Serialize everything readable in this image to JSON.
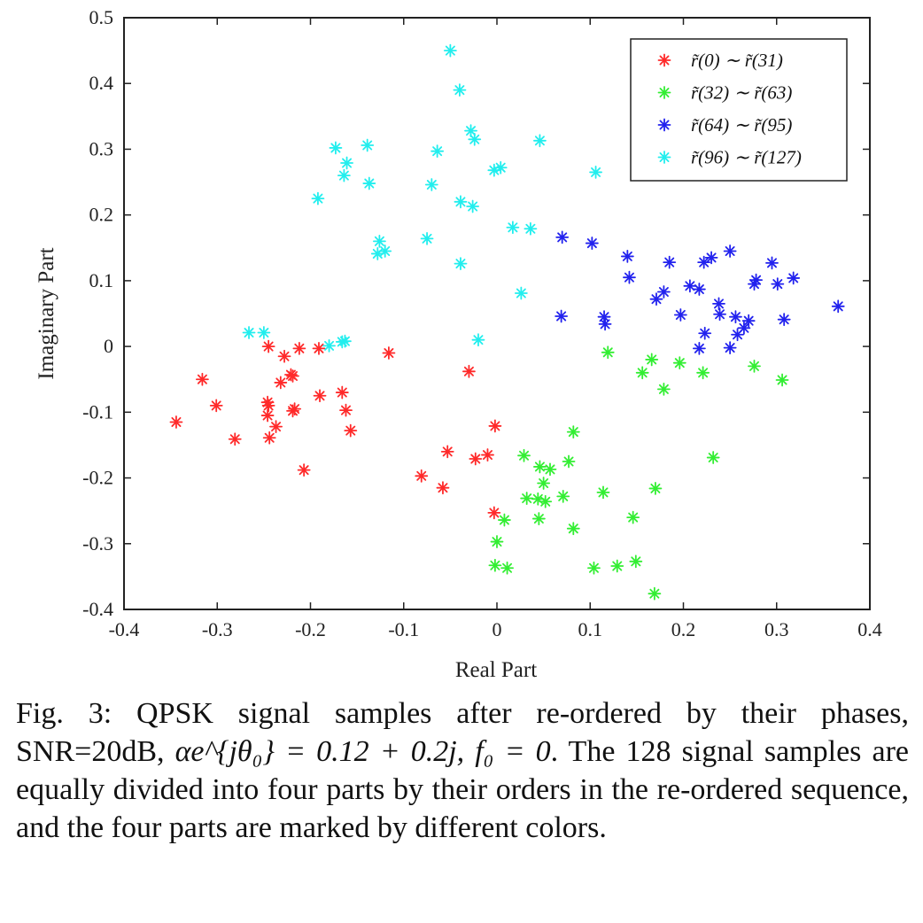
{
  "chart_data": {
    "type": "scatter",
    "title": "",
    "xlabel": "Real Part",
    "ylabel": "Imaginary Part",
    "xlim": [
      -0.4,
      0.4
    ],
    "ylim": [
      -0.4,
      0.5
    ],
    "xticks": [
      "-0.4",
      "-0.3",
      "-0.2",
      "-0.1",
      "0",
      "0.1",
      "0.2",
      "0.3",
      "0.4"
    ],
    "yticks": [
      "-0.4",
      "-0.3",
      "-0.2",
      "-0.1",
      "0",
      "0.1",
      "0.2",
      "0.3",
      "0.4",
      "0.5"
    ],
    "grid": false,
    "legend_position": "top-right",
    "marker": "asterisk",
    "series": [
      {
        "name": "r̃(0) ∼ r̃(31)",
        "color": "#ff2a2a",
        "points": [
          [
            -0.344,
            -0.115
          ],
          [
            -0.316,
            -0.05
          ],
          [
            -0.301,
            -0.09
          ],
          [
            -0.281,
            -0.141
          ],
          [
            -0.245,
            0.0
          ],
          [
            -0.246,
            -0.085
          ],
          [
            -0.245,
            -0.09
          ],
          [
            -0.246,
            -0.105
          ],
          [
            -0.244,
            -0.139
          ],
          [
            -0.237,
            -0.122
          ],
          [
            -0.232,
            -0.055
          ],
          [
            -0.228,
            -0.015
          ],
          [
            -0.221,
            -0.043
          ],
          [
            -0.219,
            -0.045
          ],
          [
            -0.219,
            -0.098
          ],
          [
            -0.217,
            -0.095
          ],
          [
            -0.212,
            -0.003
          ],
          [
            -0.207,
            -0.188
          ],
          [
            -0.191,
            -0.003
          ],
          [
            -0.19,
            -0.075
          ],
          [
            -0.166,
            -0.07
          ],
          [
            -0.162,
            -0.097
          ],
          [
            -0.157,
            -0.128
          ],
          [
            -0.116,
            -0.01
          ],
          [
            -0.081,
            -0.197
          ],
          [
            -0.058,
            -0.215
          ],
          [
            -0.053,
            -0.16
          ],
          [
            -0.03,
            -0.038
          ],
          [
            -0.023,
            -0.171
          ],
          [
            -0.01,
            -0.165
          ],
          [
            -0.002,
            -0.121
          ],
          [
            -0.003,
            -0.253
          ]
        ]
      },
      {
        "name": "r̃(32) ∼ r̃(63)",
        "color": "#33ee33",
        "points": [
          [
            0.0,
            -0.297
          ],
          [
            -0.002,
            -0.333
          ],
          [
            0.008,
            -0.264
          ],
          [
            0.011,
            -0.337
          ],
          [
            0.029,
            -0.166
          ],
          [
            0.032,
            -0.231
          ],
          [
            0.044,
            -0.232
          ],
          [
            0.045,
            -0.262
          ],
          [
            0.046,
            -0.183
          ],
          [
            0.05,
            -0.208
          ],
          [
            0.052,
            -0.236
          ],
          [
            0.057,
            -0.187
          ],
          [
            0.071,
            -0.228
          ],
          [
            0.077,
            -0.175
          ],
          [
            0.082,
            -0.13
          ],
          [
            0.082,
            -0.277
          ],
          [
            0.104,
            -0.337
          ],
          [
            0.114,
            -0.222
          ],
          [
            0.119,
            -0.009
          ],
          [
            0.129,
            -0.334
          ],
          [
            0.146,
            -0.26
          ],
          [
            0.149,
            -0.327
          ],
          [
            0.156,
            -0.04
          ],
          [
            0.166,
            -0.02
          ],
          [
            0.17,
            -0.216
          ],
          [
            0.169,
            -0.376
          ],
          [
            0.179,
            -0.065
          ],
          [
            0.196,
            -0.025
          ],
          [
            0.221,
            -0.04
          ],
          [
            0.232,
            -0.169
          ],
          [
            0.276,
            -0.03
          ],
          [
            0.306,
            -0.051
          ]
        ]
      },
      {
        "name": "r̃(64) ∼ r̃(95)",
        "color": "#2222ee",
        "points": [
          [
            0.069,
            0.046
          ],
          [
            0.07,
            0.166
          ],
          [
            0.102,
            0.157
          ],
          [
            0.115,
            0.045
          ],
          [
            0.116,
            0.034
          ],
          [
            0.14,
            0.137
          ],
          [
            0.142,
            0.105
          ],
          [
            0.171,
            0.072
          ],
          [
            0.179,
            0.083
          ],
          [
            0.185,
            0.128
          ],
          [
            0.197,
            0.048
          ],
          [
            0.207,
            0.092
          ],
          [
            0.217,
            0.087
          ],
          [
            0.217,
            -0.003
          ],
          [
            0.222,
            0.128
          ],
          [
            0.223,
            0.02
          ],
          [
            0.23,
            0.135
          ],
          [
            0.238,
            0.065
          ],
          [
            0.239,
            0.049
          ],
          [
            0.25,
            0.145
          ],
          [
            0.25,
            -0.002
          ],
          [
            0.256,
            0.045
          ],
          [
            0.258,
            0.018
          ],
          [
            0.265,
            0.028
          ],
          [
            0.27,
            0.039
          ],
          [
            0.276,
            0.095
          ],
          [
            0.278,
            0.101
          ],
          [
            0.295,
            0.127
          ],
          [
            0.301,
            0.095
          ],
          [
            0.308,
            0.041
          ],
          [
            0.318,
            0.104
          ],
          [
            0.366,
            0.061
          ]
        ]
      },
      {
        "name": "r̃(96) ∼ r̃(127)",
        "color": "#22eeee",
        "points": [
          [
            -0.266,
            0.021
          ],
          [
            -0.25,
            0.021
          ],
          [
            -0.18,
            0.001
          ],
          [
            -0.166,
            0.007
          ],
          [
            -0.163,
            0.008
          ],
          [
            -0.192,
            0.225
          ],
          [
            -0.173,
            0.302
          ],
          [
            -0.164,
            0.26
          ],
          [
            -0.161,
            0.279
          ],
          [
            -0.139,
            0.306
          ],
          [
            -0.137,
            0.248
          ],
          [
            -0.128,
            0.141
          ],
          [
            -0.126,
            0.16
          ],
          [
            -0.12,
            0.145
          ],
          [
            -0.075,
            0.164
          ],
          [
            -0.07,
            0.246
          ],
          [
            -0.064,
            0.297
          ],
          [
            -0.05,
            0.45
          ],
          [
            -0.04,
            0.39
          ],
          [
            -0.039,
            0.22
          ],
          [
            -0.039,
            0.126
          ],
          [
            -0.028,
            0.328
          ],
          [
            -0.026,
            0.213
          ],
          [
            -0.024,
            0.315
          ],
          [
            -0.02,
            0.01
          ],
          [
            -0.003,
            0.268
          ],
          [
            0.004,
            0.272
          ],
          [
            0.017,
            0.181
          ],
          [
            0.026,
            0.081
          ],
          [
            0.036,
            0.179
          ],
          [
            0.046,
            0.313
          ],
          [
            0.106,
            0.265
          ]
        ]
      }
    ]
  },
  "caption": {
    "line1": "Fig. 3: QPSK signal samples after re-ordered by their phases,",
    "line2_a": "SNR=20dB, ",
    "line2_math": "αe^{jθ₀} = 0.12 + 0.2j,  f₀ = 0",
    "line2_b": ". The 128 signal",
    "rest": "samples are equally divided into four parts by their orders in the re-ordered sequence, and the four parts are marked by different colors."
  }
}
